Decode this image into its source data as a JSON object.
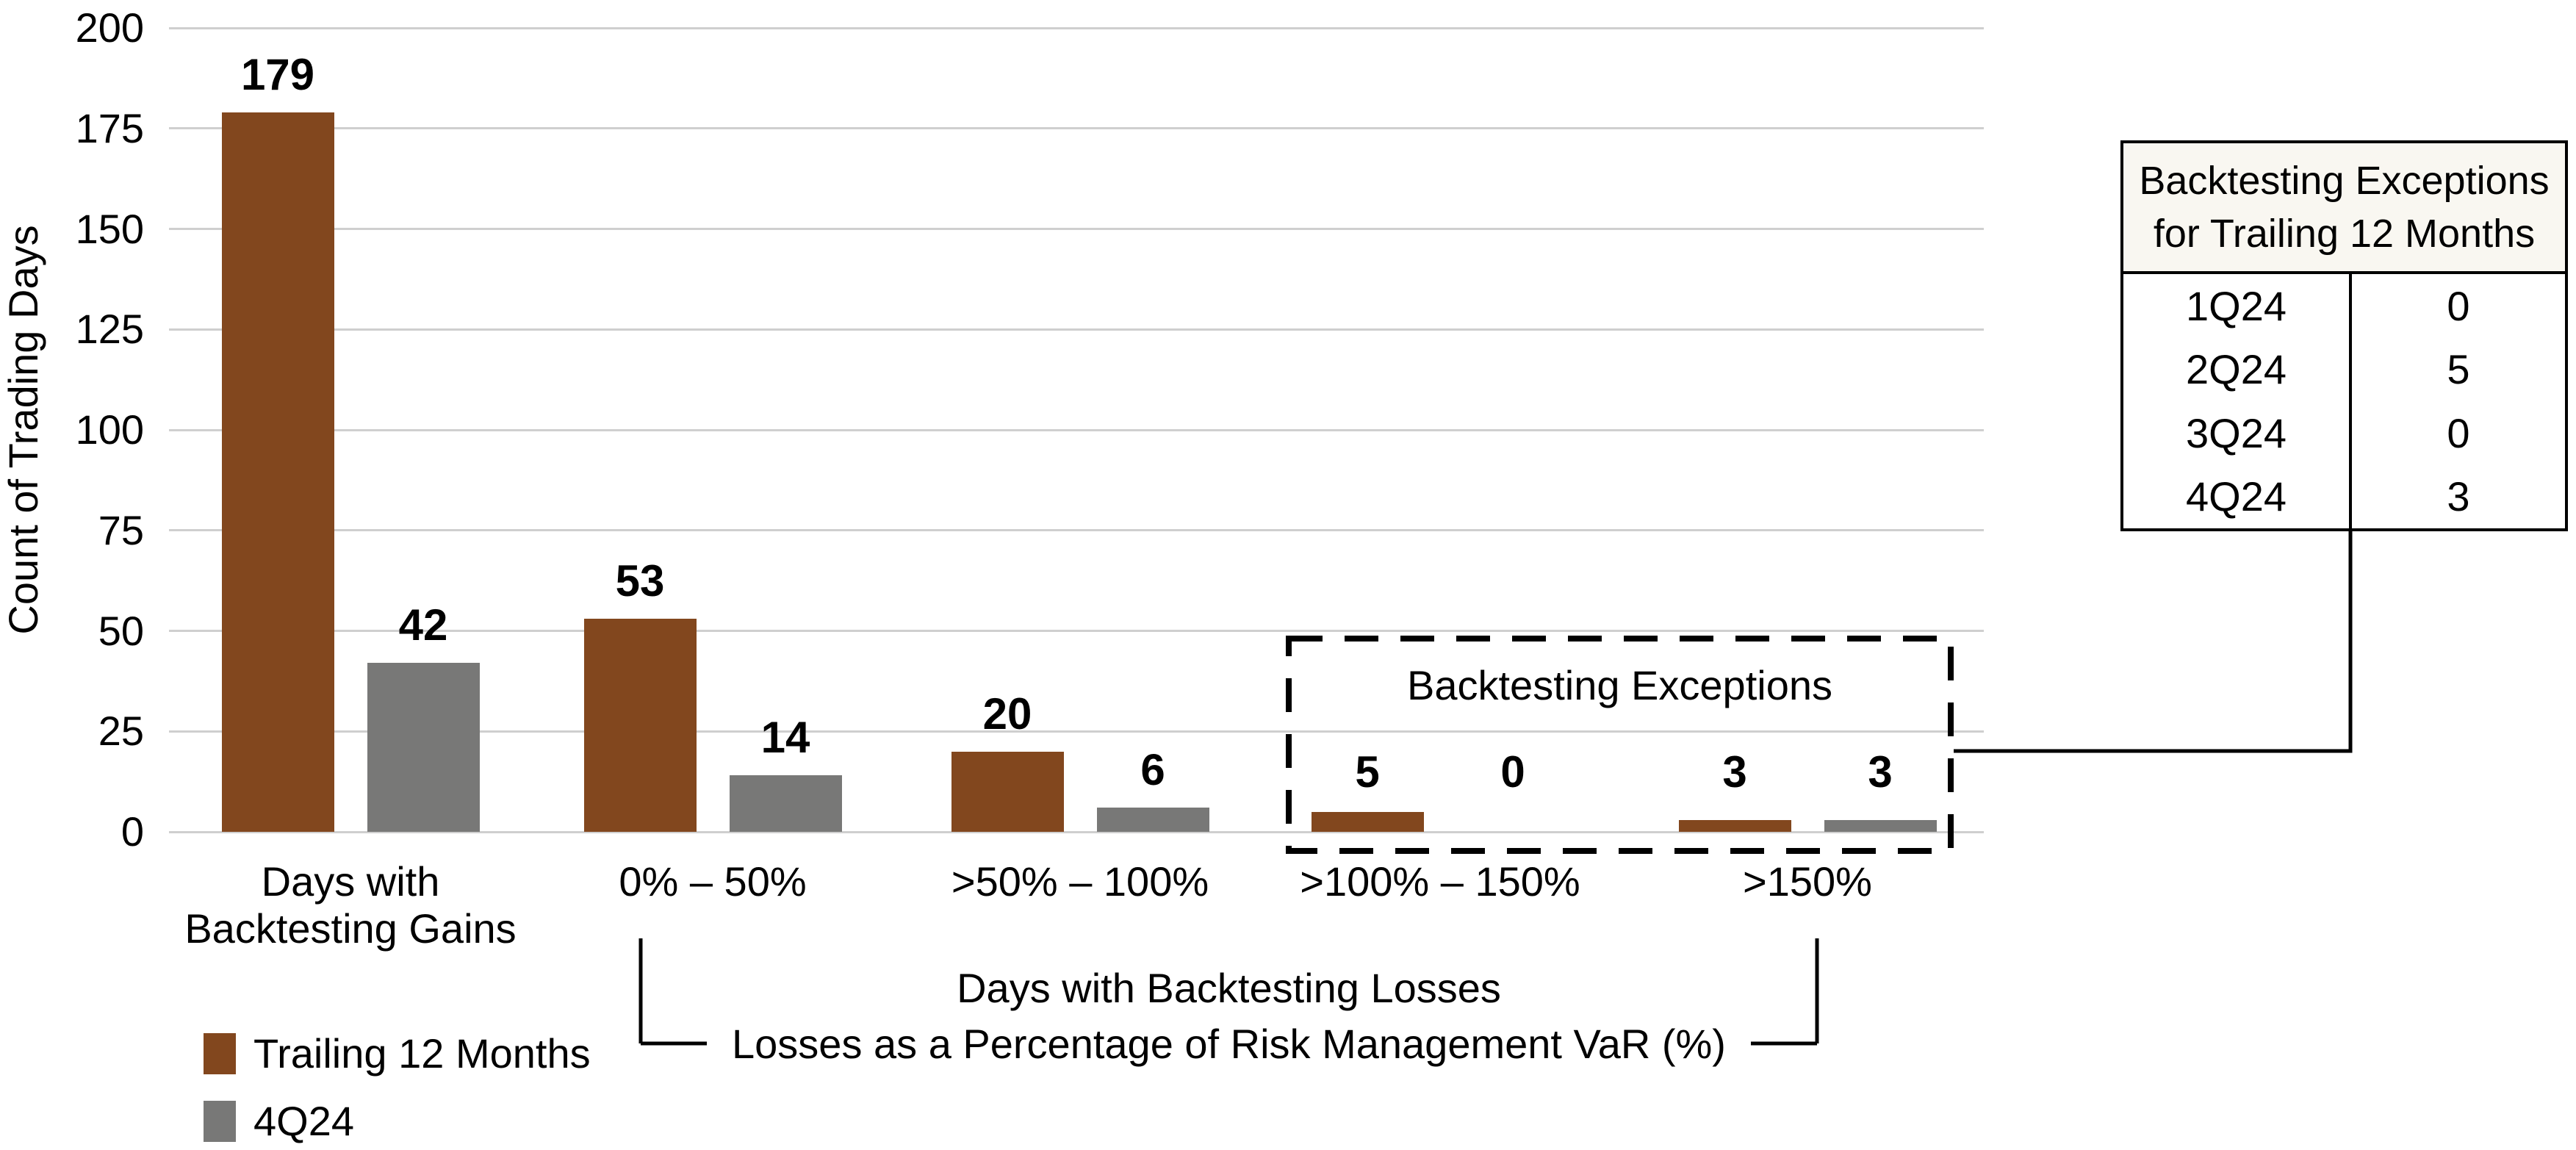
{
  "chart_data": {
    "type": "bar",
    "title": "",
    "ylabel": "Count of Trading Days",
    "xlabel": "",
    "ylim": [
      0,
      200
    ],
    "yticks": [
      0,
      25,
      50,
      75,
      100,
      125,
      150,
      175,
      200
    ],
    "grid": "horizontal",
    "legend_position": "bottom-left",
    "categories": [
      "Days with\nBacktesting Gains",
      "0% – 50%",
      ">50% – 100%",
      ">100% – 150%",
      ">150%"
    ],
    "series": [
      {
        "name": "Trailing 12 Months",
        "color": "#82471E",
        "values": [
          179,
          53,
          20,
          5,
          3
        ]
      },
      {
        "name": "4Q24",
        "color": "#787877",
        "values": [
          42,
          14,
          6,
          0,
          3
        ]
      }
    ],
    "annotations": {
      "dashed_box_label": "Backtesting Exceptions",
      "dashed_box_groups": [
        ">100% – 150%",
        ">150%"
      ],
      "x_bracket_label_line1": "Days with Backtesting Losses",
      "x_bracket_label_line2": "Losses as a Percentage of Risk Management VaR (%)"
    }
  },
  "callout_table": {
    "title": "Backtesting Exceptions\nfor Trailing 12 Months",
    "rows": [
      {
        "quarter": "1Q24",
        "exceptions": "0"
      },
      {
        "quarter": "2Q24",
        "exceptions": "5"
      },
      {
        "quarter": "3Q24",
        "exceptions": "0"
      },
      {
        "quarter": "4Q24",
        "exceptions": "3"
      }
    ]
  },
  "colors": {
    "bar_trailing_12_months": "#82471E",
    "bar_4q24": "#787877",
    "gridline": "#CFCFCF",
    "annotation_line": "#000000",
    "table_header_bg": "#F9F7F1",
    "text": "#000000",
    "background": "#FFFFFF"
  }
}
